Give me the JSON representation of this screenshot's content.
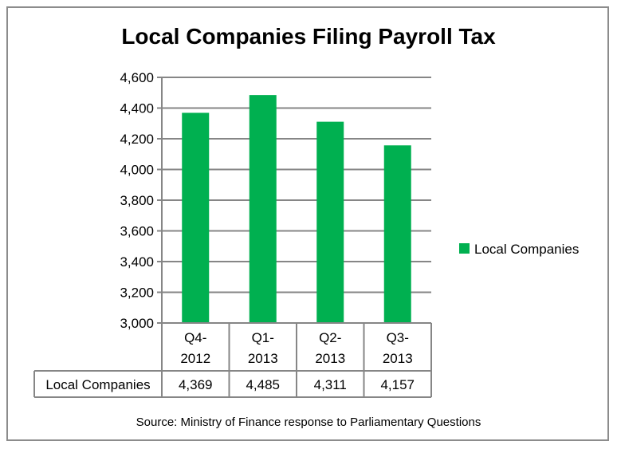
{
  "chart_data": {
    "type": "bar",
    "title": "Local Companies Filing Payroll Tax",
    "categories": [
      [
        "Q4-",
        "2012"
      ],
      [
        "Q1-",
        "2013"
      ],
      [
        "Q2-",
        "2013"
      ],
      [
        "Q3-",
        "2013"
      ]
    ],
    "series": [
      {
        "name": "Local Companies",
        "values": [
          4369,
          4485,
          4311,
          4157
        ],
        "color": "#00b050"
      }
    ],
    "table_values": [
      "4,369",
      "4,485",
      "4,311",
      "4,157"
    ],
    "yticks": [
      "3,000",
      "3,200",
      "3,400",
      "3,600",
      "3,800",
      "4,000",
      "4,200",
      "4,400",
      "4,600"
    ],
    "ylim": [
      3000,
      4600
    ],
    "ystep": 200,
    "grid": true,
    "legend": "right",
    "gridColor": "#868686",
    "source": "Source: Ministry of Finance response to Parliamentary Questions"
  }
}
